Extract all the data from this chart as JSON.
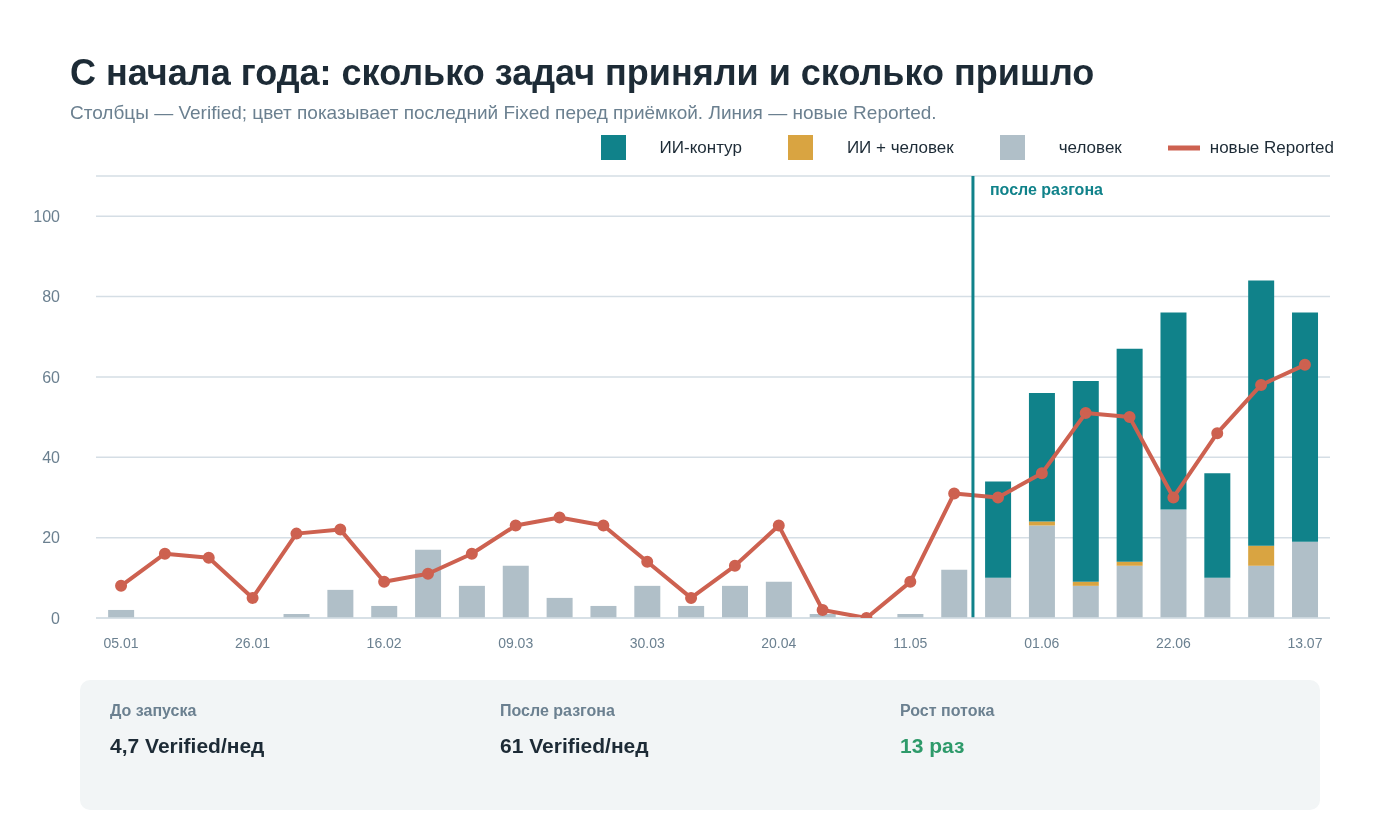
{
  "chart_data": {
    "type": "bar",
    "title": "С начала года: сколько задач приняли и сколько пришло",
    "subtitle": "Столбцы — Verified; цвет показывает последний Fixed перед приёмкой. Линия — новые Reported.",
    "x": [
      "--01-05",
      "--01-12",
      "--01-19",
      "--01-26",
      "--02-02",
      "--02-09",
      "--02-16",
      "--02-23",
      "--03-02",
      "--03-09",
      "--03-16",
      "--03-23",
      "--03-30",
      "--04-06",
      "--04-13",
      "--04-20",
      "--04-27",
      "--05-04",
      "--05-11",
      "--05-18",
      "--05-25",
      "--06-01",
      "--06-08",
      "--06-15",
      "--06-22",
      "--06-29",
      "--07-06",
      "--07-13"
    ],
    "stacked": true,
    "series": [
      {
        "name": "человек",
        "color": "#b0bfc8",
        "values": [
          2,
          0,
          0,
          0,
          1,
          7,
          3,
          17,
          8,
          13,
          5,
          3,
          8,
          3,
          8,
          9,
          1,
          0,
          1,
          12,
          10,
          23,
          8,
          13,
          27,
          10,
          13,
          19
        ]
      },
      {
        "name": "ИИ + человек",
        "color": "#d9a441",
        "values": [
          0,
          0,
          0,
          0,
          0,
          0,
          0,
          0,
          0,
          0,
          0,
          0,
          0,
          0,
          0,
          0,
          0,
          0,
          0,
          0,
          0,
          1,
          1,
          1,
          0,
          0,
          5,
          0
        ]
      },
      {
        "name": "ИИ-контур",
        "color": "#10828a",
        "values": [
          0,
          0,
          0,
          0,
          0,
          0,
          0,
          0,
          0,
          0,
          0,
          0,
          0,
          0,
          0,
          0,
          0,
          0,
          0,
          0,
          24,
          32,
          50,
          53,
          49,
          26,
          66,
          57
        ]
      },
      {
        "name": "новые Reported",
        "type": "line",
        "color": "#cd6150",
        "marker": "circle",
        "values": [
          8,
          16,
          15,
          5,
          21,
          22,
          9,
          11,
          16,
          23,
          25,
          23,
          14,
          5,
          13,
          23,
          2,
          0,
          9,
          31,
          30,
          36,
          51,
          50,
          30,
          46,
          58,
          63
        ]
      }
    ],
    "xlim": [
      "--01-01",
      "--07-17"
    ],
    "xticks": [
      {
        "value": "--01-05",
        "label": "05.01"
      },
      {
        "value": "--01-26",
        "label": "26.01"
      },
      {
        "value": "--02-16",
        "label": "16.02"
      },
      {
        "value": "--03-09",
        "label": "09.03"
      },
      {
        "value": "--03-30",
        "label": "30.03"
      },
      {
        "value": "--04-20",
        "label": "20.04"
      },
      {
        "value": "--05-11",
        "label": "11.05"
      },
      {
        "value": "--06-01",
        "label": "01.06"
      },
      {
        "value": "--06-22",
        "label": "22.06"
      },
      {
        "value": "--07-13",
        "label": "13.07"
      }
    ],
    "ylim": [
      0,
      110
    ],
    "yticks": [
      0,
      20,
      40,
      60,
      80,
      100
    ],
    "grid": "y",
    "legend": "top right",
    "ref_lines": [
      {
        "axis": "x",
        "value": "--05-21",
        "label": "после разгона",
        "color": "#10828a"
      }
    ],
    "annotations": [
      "До запуска",
      "4,7 Verified/нед",
      "После разгона",
      "61 Verified/нед",
      "Рост потока",
      "13 раз"
    ]
  }
}
